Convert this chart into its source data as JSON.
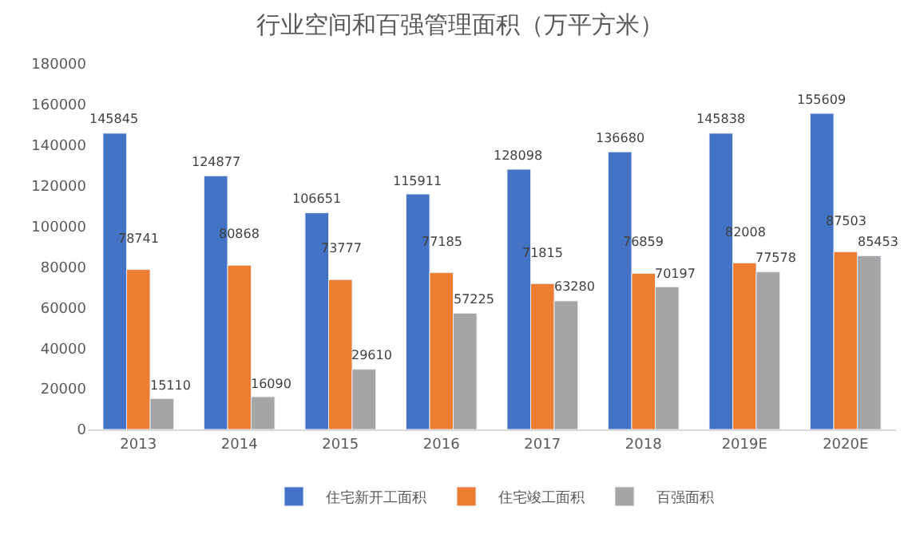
{
  "chart_data": {
    "type": "bar",
    "title": "行业空间和百强管理面积（万平方米）",
    "categories": [
      "2013",
      "2014",
      "2015",
      "2016",
      "2017",
      "2018",
      "2019E",
      "2020E"
    ],
    "series": [
      {
        "name": "住宅新开工面积",
        "color": "#4472c4",
        "values": [
          145845,
          124877,
          106651,
          115911,
          128098,
          136680,
          145838,
          155609
        ]
      },
      {
        "name": "住宅竣工面积",
        "color": "#ed7d31",
        "values": [
          78741,
          80868,
          73777,
          77185,
          71815,
          76859,
          82008,
          87503
        ]
      },
      {
        "name": "百强面积",
        "color": "#a5a5a5",
        "values": [
          15110,
          16090,
          29610,
          57225,
          63280,
          70197,
          77578,
          85453
        ]
      }
    ],
    "ylim": [
      0,
      180000
    ],
    "yticks": [
      0,
      20000,
      40000,
      60000,
      80000,
      100000,
      120000,
      140000,
      160000,
      180000
    ],
    "grid": false,
    "legend": "bottom",
    "data_labels": true
  }
}
